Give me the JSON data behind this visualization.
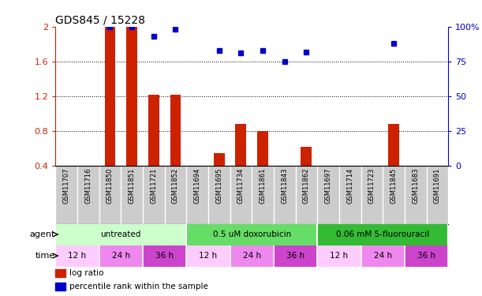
{
  "title": "GDS845 / 15228",
  "samples": [
    "GSM11707",
    "GSM11716",
    "GSM11850",
    "GSM11851",
    "GSM11721",
    "GSM11852",
    "GSM11694",
    "GSM11695",
    "GSM11734",
    "GSM11861",
    "GSM11843",
    "GSM11862",
    "GSM11697",
    "GSM11714",
    "GSM11723",
    "GSM11845",
    "GSM11683",
    "GSM11691"
  ],
  "log_ratio": [
    0.0,
    0.0,
    2.0,
    2.0,
    1.22,
    1.22,
    0.0,
    0.55,
    0.88,
    0.8,
    0.4,
    0.62,
    0.0,
    0.0,
    0.0,
    0.88,
    0.0,
    0.0
  ],
  "percentile": [
    null,
    null,
    100,
    100,
    93,
    98,
    null,
    83,
    81,
    83,
    75,
    82,
    null,
    null,
    null,
    88,
    null,
    null
  ],
  "ylim_left": [
    0.4,
    2.0
  ],
  "ylim_right": [
    0,
    100
  ],
  "yticks_left": [
    0.4,
    0.8,
    1.2,
    1.6,
    2.0
  ],
  "ytick_labels_left": [
    "0.4",
    "0.8",
    "1.2",
    "1.6",
    "2"
  ],
  "yticks_right": [
    0,
    25,
    50,
    75,
    100
  ],
  "ytick_labels_right": [
    "0",
    "25",
    "50",
    "75",
    "100%"
  ],
  "bar_color": "#cc2200",
  "dot_color": "#0000cc",
  "agent_groups": [
    {
      "label": "untreated",
      "start": 0,
      "end": 6,
      "color": "#ccffcc"
    },
    {
      "label": "0.5 uM doxorubicin",
      "start": 6,
      "end": 12,
      "color": "#66dd66"
    },
    {
      "label": "0.06 mM 5-fluorouracil",
      "start": 12,
      "end": 18,
      "color": "#33bb33"
    }
  ],
  "time_groups": [
    {
      "label": "12 h",
      "start": 0,
      "end": 2,
      "color": "#ffccff"
    },
    {
      "label": "24 h",
      "start": 2,
      "end": 4,
      "color": "#ee88ee"
    },
    {
      "label": "36 h",
      "start": 4,
      "end": 6,
      "color": "#cc44cc"
    },
    {
      "label": "12 h",
      "start": 6,
      "end": 8,
      "color": "#ffccff"
    },
    {
      "label": "24 h",
      "start": 8,
      "end": 10,
      "color": "#ee88ee"
    },
    {
      "label": "36 h",
      "start": 10,
      "end": 12,
      "color": "#cc44cc"
    },
    {
      "label": "12 h",
      "start": 12,
      "end": 14,
      "color": "#ffccff"
    },
    {
      "label": "24 h",
      "start": 14,
      "end": 16,
      "color": "#ee88ee"
    },
    {
      "label": "36 h",
      "start": 16,
      "end": 18,
      "color": "#cc44cc"
    }
  ],
  "axis_color_left": "#cc2200",
  "axis_color_right": "#0000cc",
  "sample_bg": "#cccccc",
  "grid_yticks": [
    0.8,
    1.2,
    1.6
  ]
}
